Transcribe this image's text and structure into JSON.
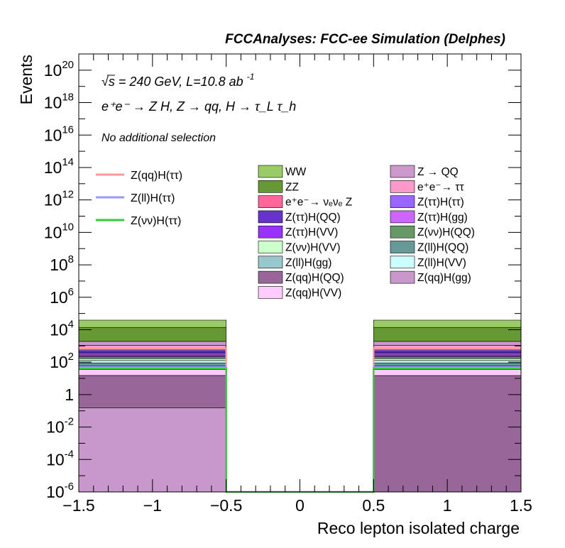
{
  "header": {
    "title": "FCCAnalyses: FCC-ee Simulation (Delphes)",
    "energy_prefix": "√s = 240 GeV, L=10.8 ab",
    "energy_exp": "-1",
    "process": "e⁺e⁻ → Z H, Z  → qq, H  → τ_L τ_h",
    "selection": "No additional selection"
  },
  "chart_data": {
    "type": "bar",
    "xlabel": "Reco lepton isolated charge",
    "ylabel": "Events",
    "xlim": [
      -1.5,
      1.5
    ],
    "ylim": [
      1e-06,
      1e+21
    ],
    "yscale": "log",
    "x_ticks": [
      "−1.5",
      "−1",
      "−0.5",
      "0",
      "0.5",
      "1",
      "1.5"
    ],
    "y_ticks": [
      {
        "base": "10",
        "exp": "20"
      },
      {
        "base": "10",
        "exp": "18"
      },
      {
        "base": "10",
        "exp": "16"
      },
      {
        "base": "10",
        "exp": "14"
      },
      {
        "base": "10",
        "exp": "12"
      },
      {
        "base": "10",
        "exp": "10"
      },
      {
        "base": "10",
        "exp": "8"
      },
      {
        "base": "10",
        "exp": "6"
      },
      {
        "base": "10",
        "exp": "4"
      },
      {
        "base": "10",
        "exp": "2"
      },
      {
        "base": "1",
        "exp": ""
      },
      {
        "base": "10",
        "exp": "-2"
      },
      {
        "base": "10",
        "exp": "-4"
      },
      {
        "base": "10",
        "exp": "-6"
      }
    ],
    "bins": [
      [
        -1.5,
        -0.5
      ],
      [
        -0.5,
        0.5
      ],
      [
        0.5,
        1.5
      ]
    ],
    "stacked_backgrounds": [
      {
        "name": "Z(qq)H(gg)",
        "color": "#c898cc",
        "values": [
          0.15,
          0,
          0
        ]
      },
      {
        "name": "Z(qq)H(QQ)",
        "color": "#99669a",
        "values": [
          15,
          0,
          15
        ]
      },
      {
        "name": "Z(qq)H(VV)",
        "color": "#ffccff",
        "values": [
          20,
          0,
          20
        ]
      },
      {
        "name": "Z(ll)H(gg)",
        "color": "#99c8cc",
        "values": [
          25,
          0,
          25
        ]
      },
      {
        "name": "Z(ll)H(QQ)",
        "color": "#669a99",
        "values": [
          30,
          0,
          30
        ]
      },
      {
        "name": "Z(ll)H(VV)",
        "color": "#ccffff",
        "values": [
          36,
          0,
          36
        ]
      },
      {
        "name": "Z(νν)H(VV)",
        "color": "#ccffcc",
        "values": [
          42,
          0,
          42
        ]
      },
      {
        "name": "Z(νν)H(QQ)",
        "color": "#669966",
        "values": [
          52,
          0,
          52
        ]
      },
      {
        "name": "Z(ττ)H(VV)",
        "color": "#9932ff",
        "values": [
          62,
          0,
          62
        ]
      },
      {
        "name": "Z(ττ)H(gg)",
        "color": "#cc66ff",
        "values": [
          75,
          0,
          75
        ]
      },
      {
        "name": "Z(ττ)H(QQ)",
        "color": "#6633cc",
        "values": [
          90,
          0,
          90
        ]
      },
      {
        "name": "Z(ττ)H(ττ)",
        "color": "#9966ff",
        "values": [
          110,
          0,
          110
        ]
      },
      {
        "name": "e⁺e⁻→ νₑνₑ Z",
        "color": "#ff6699",
        "values": [
          150,
          0,
          150
        ]
      },
      {
        "name": "e⁺e⁻→ ττ",
        "color": "#ff99cc",
        "values": [
          400,
          0,
          400
        ]
      },
      {
        "name": "Z → QQ",
        "color": "#cc99cc",
        "values": [
          800,
          0,
          800
        ]
      },
      {
        "name": "ZZ",
        "color": "#669933",
        "values": [
          12000,
          0,
          12000
        ]
      },
      {
        "name": "WW",
        "color": "#99cc66",
        "values": [
          25000,
          0,
          25000
        ]
      }
    ],
    "signal_series": [
      {
        "name": "Z(qq)H(ττ)",
        "color": "#ff9999",
        "values": [
          700,
          0,
          700
        ]
      },
      {
        "name": "Z(ll)H(ττ)",
        "color": "#9999ff",
        "values": [
          50,
          0,
          50
        ]
      },
      {
        "name": "Z(νν)H(ττ)",
        "color": "#33cc33",
        "values": [
          40,
          0,
          40
        ]
      }
    ],
    "legend": {
      "signals": [
        "Z(qq)H(ττ)",
        "Z(ll)H(ττ)",
        "Z(νν)H(ττ)"
      ],
      "column1": [
        "WW",
        "ZZ",
        "e⁺e⁻→ νₑνₑ Z",
        "Z(ττ)H(QQ)",
        "Z(ττ)H(VV)",
        "Z(νν)H(VV)",
        "Z(ll)H(gg)",
        "Z(qq)H(QQ)",
        "Z(qq)H(VV)"
      ],
      "column2": [
        "Z → QQ",
        "e⁺e⁻→ ττ",
        "Z(ττ)H(ττ)",
        "Z(ττ)H(gg)",
        "Z(νν)H(QQ)",
        "Z(ll)H(QQ)",
        "Z(ll)H(VV)",
        "Z(qq)H(gg)"
      ]
    },
    "grid": false,
    "legend_position": "inside-top"
  }
}
